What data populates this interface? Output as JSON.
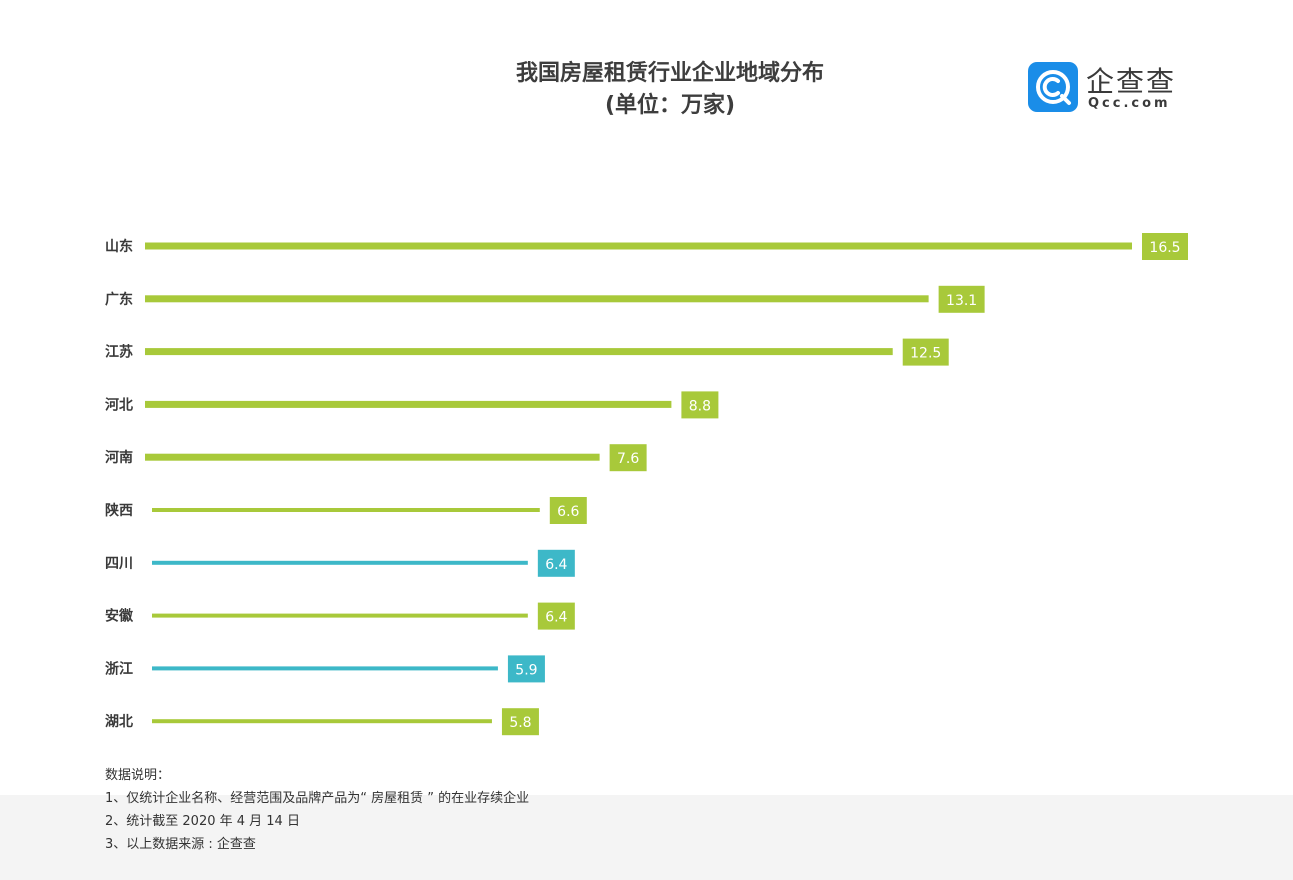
{
  "header": {
    "title": "我国房屋租赁行业企业地域分布",
    "subtitle": "(单位：万家)"
  },
  "logo": {
    "cn_text": "企查查",
    "en_text": "Qcc.com",
    "brand_color": "#1a8de8"
  },
  "colors": {
    "green": "#a8c93a",
    "teal": "#3db8c8"
  },
  "chart_data": {
    "type": "bar",
    "orientation": "horizontal",
    "title": "我国房屋租赁行业企业地域分布",
    "subtitle": "(单位：万家)",
    "categories": [
      "山东",
      "广东",
      "江苏",
      "河北",
      "河南",
      "陕西",
      "四川",
      "安徽",
      "浙江",
      "湖北"
    ],
    "values": [
      16.5,
      13.1,
      12.5,
      8.8,
      7.6,
      6.6,
      6.4,
      6.4,
      5.9,
      5.8
    ],
    "value_labels": [
      "16.5",
      "13.1",
      "12.5",
      "8.8",
      "7.6",
      "6.6",
      "6.4",
      "6.4",
      "5.9",
      "5.8"
    ],
    "bar_colors": [
      "#a8c93a",
      "#a8c93a",
      "#a8c93a",
      "#a8c93a",
      "#a8c93a",
      "#a8c93a",
      "#3db8c8",
      "#a8c93a",
      "#3db8c8",
      "#a8c93a"
    ],
    "grid": false,
    "legend": "none"
  },
  "notes": {
    "heading": "数据说明：",
    "line1": "1、仅统计企业名称、经营范围及品牌产品为“ 房屋租赁 ” 的在业存续企业",
    "line2": "2、统计截至 2020 年 4 月 14 日",
    "line3": "3、以上数据来源 : 企查查"
  }
}
